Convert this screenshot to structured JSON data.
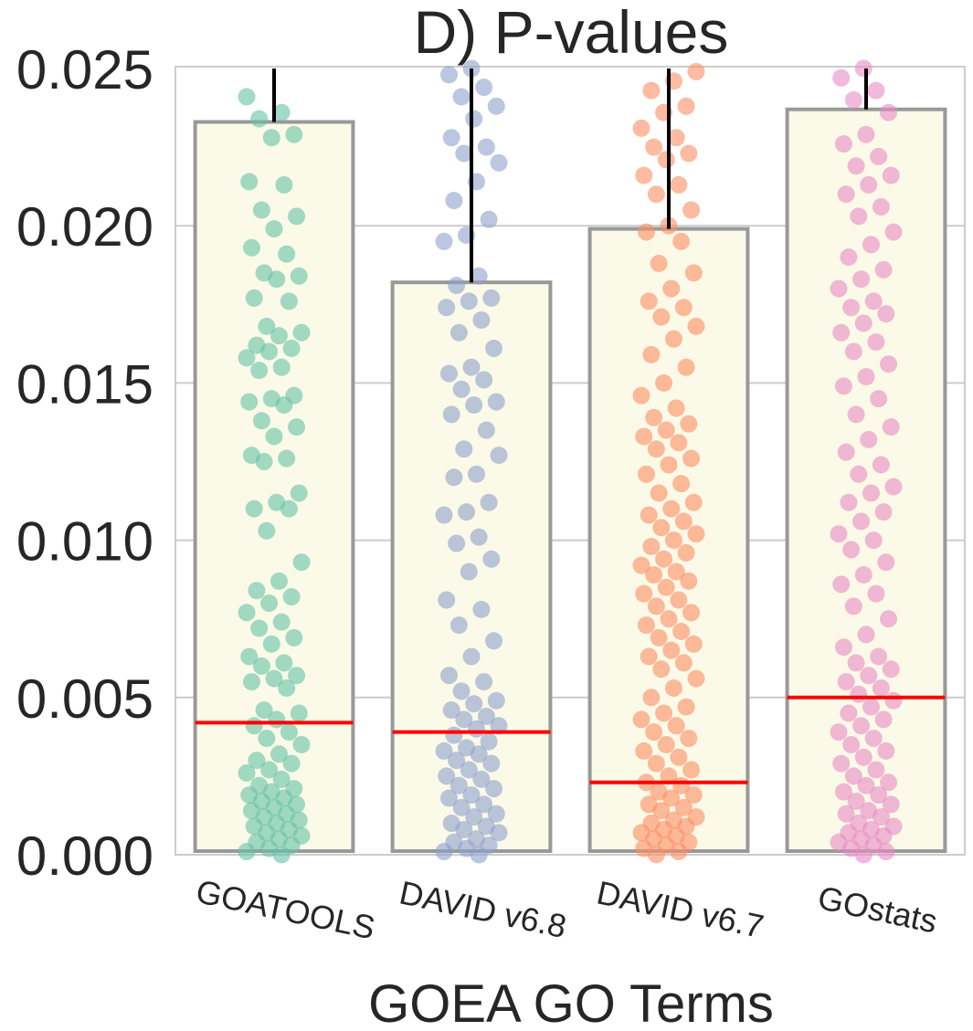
{
  "chart_data": {
    "type": "bar",
    "title": "D) P-values",
    "xlabel": "GOEA GO Terms",
    "ylabel": "",
    "ylim": [
      0,
      0.025
    ],
    "yticks": [
      "0.000",
      "0.005",
      "0.010",
      "0.015",
      "0.020",
      "0.025"
    ],
    "grid": true,
    "categories": [
      "GOATOOLS",
      "DAVID v6.8",
      "DAVID v6.7",
      "GOstats"
    ],
    "values": [
      0.0233,
      0.0182,
      0.0199,
      0.0237
    ],
    "medians": [
      0.0042,
      0.0039,
      0.0023,
      0.005
    ],
    "error_upper": [
      0.025,
      0.025,
      0.025,
      0.025
    ],
    "point_colors": [
      "#66c2a5",
      "#8da0cb",
      "#fc8d62",
      "#e78ac3"
    ],
    "bar_fill": "#fbfae8",
    "bar_edge": "#999999",
    "median_color": "#ff0000",
    "points": [
      [
        0.0241,
        0.0236,
        0.0234,
        0.0229,
        0.0228,
        0.0214,
        0.0213,
        0.0205,
        0.0203,
        0.0199,
        0.0193,
        0.0191,
        0.0185,
        0.0184,
        0.0183,
        0.0177,
        0.0176,
        0.0168,
        0.0166,
        0.0165,
        0.0162,
        0.0161,
        0.016,
        0.0158,
        0.0155,
        0.0154,
        0.0146,
        0.0145,
        0.0144,
        0.0143,
        0.0138,
        0.0136,
        0.0133,
        0.0127,
        0.0126,
        0.0125,
        0.0115,
        0.0112,
        0.011,
        0.011,
        0.0103,
        0.0093,
        0.0087,
        0.0084,
        0.0082,
        0.008,
        0.0077,
        0.0074,
        0.0072,
        0.0069,
        0.0067,
        0.0063,
        0.0061,
        0.006,
        0.0057,
        0.0056,
        0.0055,
        0.0053,
        0.0046,
        0.0045,
        0.0043,
        0.0041,
        0.0039,
        0.0037,
        0.0035,
        0.0032,
        0.003,
        0.0029,
        0.0027,
        0.0026,
        0.0024,
        0.0022,
        0.0021,
        0.002,
        0.0019,
        0.0018,
        0.0017,
        0.0016,
        0.0015,
        0.0014,
        0.0013,
        0.0012,
        0.0011,
        0.001,
        0.0009,
        0.0008,
        0.0007,
        0.0006,
        0.0005,
        0.0004,
        0.0003,
        0.0002,
        0.0001,
        0.0
      ],
      [
        0.025,
        0.0248,
        0.0244,
        0.0241,
        0.0238,
        0.0234,
        0.0228,
        0.0225,
        0.0223,
        0.022,
        0.0214,
        0.0208,
        0.0202,
        0.0197,
        0.0195,
        0.0184,
        0.0181,
        0.0177,
        0.0176,
        0.0174,
        0.017,
        0.0166,
        0.0161,
        0.0155,
        0.0153,
        0.0151,
        0.0148,
        0.0144,
        0.0143,
        0.014,
        0.0135,
        0.0129,
        0.0127,
        0.0121,
        0.012,
        0.0112,
        0.0109,
        0.0108,
        0.0101,
        0.0099,
        0.0094,
        0.009,
        0.0081,
        0.0078,
        0.0073,
        0.0068,
        0.0063,
        0.0057,
        0.0055,
        0.0052,
        0.0049,
        0.0048,
        0.0046,
        0.0044,
        0.0043,
        0.0041,
        0.004,
        0.0038,
        0.0036,
        0.0034,
        0.0033,
        0.0032,
        0.003,
        0.0029,
        0.0027,
        0.0025,
        0.0024,
        0.0022,
        0.0021,
        0.0019,
        0.0018,
        0.0016,
        0.0015,
        0.0013,
        0.0012,
        0.001,
        0.0009,
        0.0008,
        0.0007,
        0.0005,
        0.0004,
        0.0003,
        0.0002,
        0.0001,
        0.0
      ],
      [
        0.0249,
        0.0246,
        0.0243,
        0.0238,
        0.0236,
        0.0231,
        0.0228,
        0.0225,
        0.0223,
        0.0221,
        0.0216,
        0.0213,
        0.021,
        0.0205,
        0.02,
        0.0198,
        0.0195,
        0.0188,
        0.0185,
        0.018,
        0.0176,
        0.0174,
        0.0171,
        0.0168,
        0.0164,
        0.0159,
        0.0155,
        0.015,
        0.0146,
        0.0142,
        0.0139,
        0.0137,
        0.0135,
        0.0133,
        0.0131,
        0.0129,
        0.0126,
        0.0124,
        0.0121,
        0.0118,
        0.0115,
        0.0112,
        0.011,
        0.0108,
        0.0106,
        0.0104,
        0.0102,
        0.01,
        0.0098,
        0.0096,
        0.0094,
        0.0092,
        0.009,
        0.0089,
        0.0087,
        0.0085,
        0.0083,
        0.0081,
        0.0079,
        0.0077,
        0.0075,
        0.0073,
        0.0071,
        0.0069,
        0.0067,
        0.0065,
        0.0063,
        0.0061,
        0.0059,
        0.0056,
        0.0053,
        0.005,
        0.0047,
        0.0045,
        0.0043,
        0.0041,
        0.0039,
        0.0037,
        0.0035,
        0.0033,
        0.0031,
        0.0029,
        0.0027,
        0.0025,
        0.0023,
        0.0022,
        0.002,
        0.0019,
        0.0018,
        0.0016,
        0.0015,
        0.0014,
        0.0012,
        0.0011,
        0.001,
        0.0009,
        0.0008,
        0.0007,
        0.0006,
        0.0005,
        0.0004,
        0.0003,
        0.0002,
        0.0001,
        0.0
      ],
      [
        0.025,
        0.0247,
        0.0243,
        0.024,
        0.0236,
        0.0229,
        0.0226,
        0.0222,
        0.0219,
        0.0216,
        0.0213,
        0.021,
        0.0206,
        0.0203,
        0.0198,
        0.0194,
        0.019,
        0.0186,
        0.0183,
        0.018,
        0.0176,
        0.0174,
        0.0172,
        0.0169,
        0.0166,
        0.0163,
        0.016,
        0.0156,
        0.0152,
        0.0149,
        0.0145,
        0.014,
        0.0136,
        0.0132,
        0.0128,
        0.0124,
        0.0121,
        0.0117,
        0.0115,
        0.0112,
        0.0109,
        0.0106,
        0.0102,
        0.01,
        0.0097,
        0.0093,
        0.0089,
        0.0086,
        0.0083,
        0.0079,
        0.0075,
        0.007,
        0.0066,
        0.0063,
        0.0061,
        0.0059,
        0.0057,
        0.0055,
        0.0053,
        0.0051,
        0.0049,
        0.0047,
        0.0045,
        0.0043,
        0.0041,
        0.0039,
        0.0037,
        0.0035,
        0.0033,
        0.0031,
        0.0029,
        0.0027,
        0.0025,
        0.0023,
        0.0022,
        0.002,
        0.0019,
        0.0017,
        0.0016,
        0.0014,
        0.0013,
        0.0012,
        0.001,
        0.0009,
        0.0008,
        0.0007,
        0.0006,
        0.0005,
        0.0004,
        0.0003,
        0.0002,
        0.0001,
        0.0
      ]
    ]
  }
}
